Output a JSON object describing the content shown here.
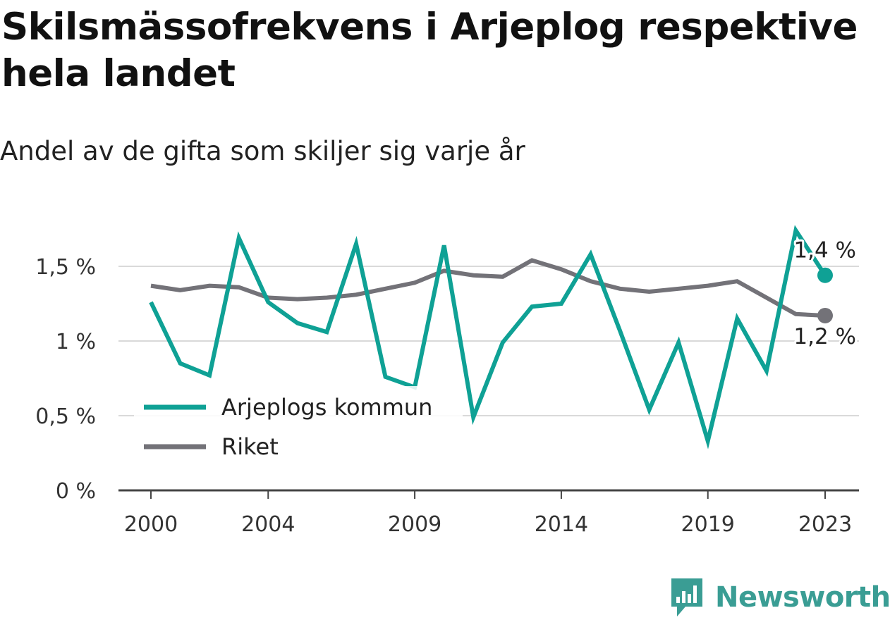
{
  "title": "Skilsmässofrekvens i Arjeplog respektive hela landet",
  "subtitle": "Andel av de gifta som skiljer sig varje år",
  "brand": {
    "name": "Newsworthy",
    "logo_icon": "newsworthy-logo-icon",
    "color": "#3a9d94"
  },
  "chart_data": {
    "type": "line",
    "x": [
      2000,
      2001,
      2002,
      2003,
      2004,
      2005,
      2006,
      2007,
      2008,
      2009,
      2010,
      2011,
      2012,
      2013,
      2014,
      2015,
      2016,
      2017,
      2018,
      2019,
      2020,
      2021,
      2022,
      2023
    ],
    "x_ticks": [
      2000,
      2004,
      2009,
      2014,
      2019,
      2023
    ],
    "x_tick_labels": [
      "2000",
      "2004",
      "2009",
      "2014",
      "2019",
      "2023"
    ],
    "y_ticks": [
      0,
      0.5,
      1,
      1.5
    ],
    "y_tick_labels": [
      "0 %",
      "0,5 %",
      "1 %",
      "1,5 %"
    ],
    "ylim": [
      0,
      1.8
    ],
    "grid": true,
    "legend_position": "bottom-left",
    "series": [
      {
        "name": "Arjeplogs kommun",
        "color": "#0fa195",
        "values": [
          1.26,
          0.85,
          0.77,
          1.69,
          1.26,
          1.12,
          1.06,
          1.65,
          0.76,
          0.69,
          1.64,
          0.49,
          0.99,
          1.23,
          1.25,
          1.58,
          1.07,
          0.54,
          0.99,
          0.33,
          1.15,
          0.8,
          1.74,
          1.44
        ],
        "end_label": "1,4 %"
      },
      {
        "name": "Riket",
        "color": "#737278",
        "values": [
          1.37,
          1.34,
          1.37,
          1.36,
          1.29,
          1.28,
          1.29,
          1.31,
          1.35,
          1.39,
          1.47,
          1.44,
          1.43,
          1.54,
          1.48,
          1.4,
          1.35,
          1.33,
          1.35,
          1.37,
          1.4,
          1.29,
          1.18,
          1.17
        ],
        "end_label": "1,2 %"
      }
    ]
  }
}
